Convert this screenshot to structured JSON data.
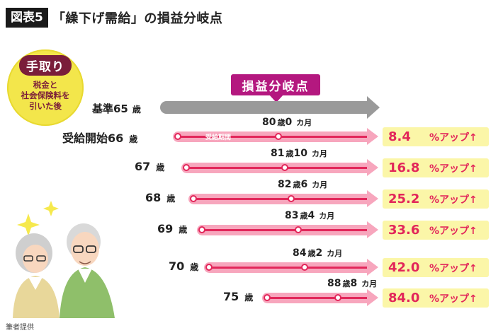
{
  "header": {
    "figure_label": "図表5",
    "title": "「繰下げ需給」の損益分岐点"
  },
  "badge": {
    "title": "手取り",
    "lines": [
      "税金と",
      "社会保険料を",
      "引いた後"
    ]
  },
  "bep_callout": "損益分岐点",
  "base": {
    "age": "基準65",
    "sai": "歳"
  },
  "inner_bar_label": "受給期間",
  "sai": "歳",
  "rows": [
    {
      "label": "受給開始66",
      "bep_age": "80",
      "bep_unit1": "歳",
      "bep_months": "0",
      "bep_unit2": "カ月",
      "pct": "8.4",
      "suffix": "%アップ↑"
    },
    {
      "label": "67",
      "bep_age": "81",
      "bep_unit1": "歳",
      "bep_months": "10",
      "bep_unit2": "カ月",
      "pct": "16.8",
      "suffix": "%アップ↑"
    },
    {
      "label": "68",
      "bep_age": "82",
      "bep_unit1": "歳",
      "bep_months": "6",
      "bep_unit2": "カ月",
      "pct": "25.2",
      "suffix": "%アップ↑"
    },
    {
      "label": "69",
      "bep_age": "83",
      "bep_unit1": "歳",
      "bep_months": "4",
      "bep_unit2": "カ月",
      "pct": "33.6",
      "suffix": "%アップ↑"
    },
    {
      "label": "70",
      "bep_age": "84",
      "bep_unit1": "歳",
      "bep_months": "2",
      "bep_unit2": "カ月",
      "pct": "42.0",
      "suffix": "%アップ↑"
    },
    {
      "label": "75",
      "bep_age": "88",
      "bep_unit1": "歳",
      "bep_months": "8",
      "bep_unit2": "カ月",
      "pct": "84.0",
      "suffix": "%アップ↑"
    }
  ],
  "source": "筆者提供",
  "colors": {
    "magenta": "#b4187f",
    "pink_bar": "#f7a6bd",
    "pink_line": "#e2265a",
    "badge_yellow": "#f3e64b",
    "badge_maroon": "#7a1d3a",
    "highlight": "#fbf6a8"
  }
}
